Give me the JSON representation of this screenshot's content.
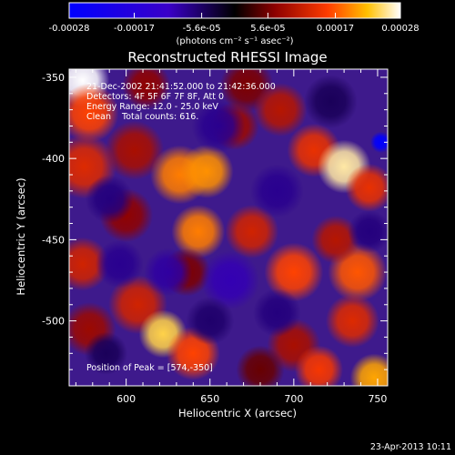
{
  "chart_data": {
    "type": "heatmap",
    "title": "Reconstructed RHESSI Image",
    "xlabel": "Heliocentric X (arcsec)",
    "ylabel": "Heliocentric Y (arcsec)",
    "xlim": [
      566,
      756
    ],
    "ylim": [
      -540,
      -345
    ],
    "x_ticks": [
      600,
      650,
      700,
      750
    ],
    "y_ticks": [
      -350,
      -400,
      -450,
      -500
    ],
    "x_tick_labels": [
      "600",
      "650",
      "700",
      "750"
    ],
    "y_tick_labels": [
      "-350",
      "-400",
      "-450",
      "-500"
    ],
    "colorbar": {
      "ticks": [
        -0.00028,
        -0.00017,
        -5.6e-05,
        5.6e-05,
        0.00017,
        0.00028
      ],
      "tick_labels": [
        "-0.00028",
        "-0.00017",
        "-5.6e-05",
        "5.6e-05",
        "0.00017",
        "0.00028"
      ],
      "unit_label": "(photons cm⁻² s⁻¹ asec⁻²)",
      "range": [
        -0.00028,
        0.00028
      ]
    },
    "annotations": [
      "21-Dec-2002 21:41:52.000 to 21:42:36.000",
      "Detectors: 4F 5F 6F 7F 8F, Att 0",
      "Energy Range: 12.0 - 25.0 keV",
      "Clean    Total counts: 616."
    ],
    "peak_label": "Position of Peak = [574,-350]",
    "peak": {
      "x": 574,
      "y": -350
    },
    "blobs": [
      {
        "x": 574,
        "y": -352,
        "v": 0.00028,
        "r": 10
      },
      {
        "x": 578,
        "y": -372,
        "v": 0.00016,
        "r": 11
      },
      {
        "x": 575,
        "y": -405,
        "v": 0.00013,
        "r": 12
      },
      {
        "x": 574,
        "y": -465,
        "v": 0.00012,
        "r": 10
      },
      {
        "x": 578,
        "y": -505,
        "v": 8e-05,
        "r": 10
      },
      {
        "x": 612,
        "y": -355,
        "v": 7e-05,
        "r": 9
      },
      {
        "x": 605,
        "y": -395,
        "v": 9e-05,
        "r": 11
      },
      {
        "x": 600,
        "y": -435,
        "v": 7e-05,
        "r": 10
      },
      {
        "x": 607,
        "y": -490,
        "v": 0.00012,
        "r": 11
      },
      {
        "x": 622,
        "y": -508,
        "v": 0.00024,
        "r": 9
      },
      {
        "x": 640,
        "y": -520,
        "v": 0.00016,
        "r": 10
      },
      {
        "x": 632,
        "y": -410,
        "v": 0.00019,
        "r": 11
      },
      {
        "x": 648,
        "y": -408,
        "v": 0.0002,
        "r": 10
      },
      {
        "x": 643,
        "y": -445,
        "v": 0.00019,
        "r": 10
      },
      {
        "x": 636,
        "y": -470,
        "v": 6e-05,
        "r": 9
      },
      {
        "x": 672,
        "y": -355,
        "v": 6e-05,
        "r": 10
      },
      {
        "x": 665,
        "y": -380,
        "v": 8e-05,
        "r": 9
      },
      {
        "x": 692,
        "y": -370,
        "v": 0.0001,
        "r": 10
      },
      {
        "x": 675,
        "y": -445,
        "v": 0.00012,
        "r": 10
      },
      {
        "x": 700,
        "y": -470,
        "v": 0.00016,
        "r": 11
      },
      {
        "x": 700,
        "y": -515,
        "v": 9e-05,
        "r": 10
      },
      {
        "x": 680,
        "y": -530,
        "v": 5e-05,
        "r": 9
      },
      {
        "x": 712,
        "y": -395,
        "v": 0.00014,
        "r": 10
      },
      {
        "x": 730,
        "y": -405,
        "v": 0.00026,
        "r": 10
      },
      {
        "x": 745,
        "y": -418,
        "v": 0.00014,
        "r": 9
      },
      {
        "x": 738,
        "y": -470,
        "v": 0.00017,
        "r": 11
      },
      {
        "x": 725,
        "y": -450,
        "v": 0.0001,
        "r": 9
      },
      {
        "x": 735,
        "y": -500,
        "v": 0.00013,
        "r": 10
      },
      {
        "x": 748,
        "y": -535,
        "v": 0.00021,
        "r": 9
      },
      {
        "x": 715,
        "y": -530,
        "v": 0.00015,
        "r": 9
      },
      {
        "x": 596,
        "y": -465,
        "v": -8e-05,
        "r": 9
      },
      {
        "x": 590,
        "y": -425,
        "v": -7e-05,
        "r": 9
      },
      {
        "x": 625,
        "y": -470,
        "v": -9e-05,
        "r": 9
      },
      {
        "x": 655,
        "y": -380,
        "v": -8e-05,
        "r": 10
      },
      {
        "x": 662,
        "y": -475,
        "v": -0.0001,
        "r": 11
      },
      {
        "x": 690,
        "y": -420,
        "v": -8e-05,
        "r": 10
      },
      {
        "x": 690,
        "y": -495,
        "v": -7e-05,
        "r": 9
      },
      {
        "x": 650,
        "y": -500,
        "v": -6e-05,
        "r": 9
      },
      {
        "x": 752,
        "y": -390,
        "v": -0.00028,
        "r": 4
      },
      {
        "x": 745,
        "y": -445,
        "v": -7e-05,
        "r": 8
      },
      {
        "x": 722,
        "y": -365,
        "v": -5e-05,
        "r": 10
      },
      {
        "x": 588,
        "y": -520,
        "v": -5e-05,
        "r": 8
      }
    ]
  },
  "footer": {
    "date": "23-Apr-2013 10:11"
  }
}
